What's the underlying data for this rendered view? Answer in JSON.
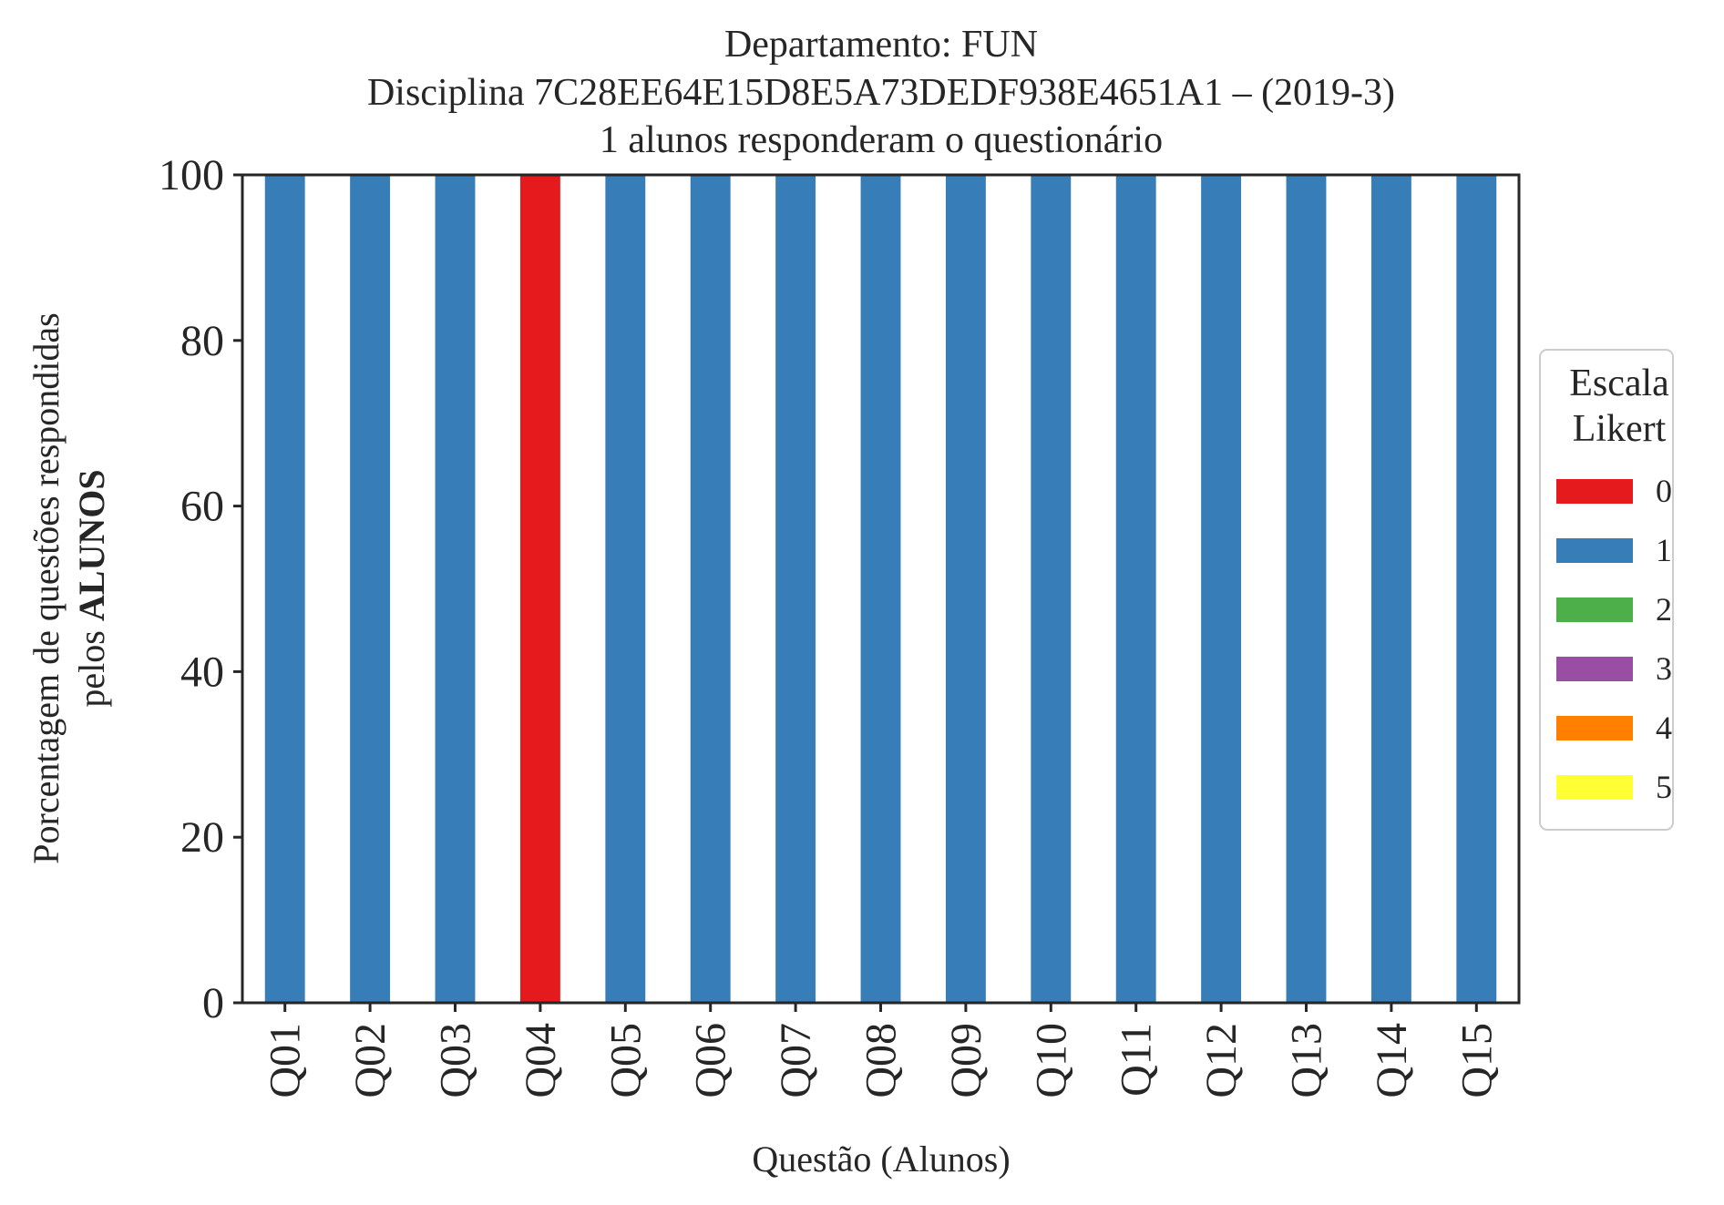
{
  "chart_data": {
    "type": "bar",
    "stacked": true,
    "title_lines": [
      "Departamento: FUN",
      "Disciplina 7C28EE64E15D8E5A73DEDF938E4651A1 – (2019-3)",
      "1 alunos responderam o questionário"
    ],
    "xlabel": "Questão (Alunos)",
    "ylabel_line1": "Porcentagem de questões respondidas",
    "ylabel_line2_prefix": "pelos ",
    "ylabel_line2_bold": "ALUNOS",
    "ylim": [
      0,
      100
    ],
    "yticks": [
      0,
      20,
      40,
      60,
      80,
      100
    ],
    "grid": false,
    "categories": [
      "Q01",
      "Q02",
      "Q03",
      "Q04",
      "Q05",
      "Q06",
      "Q07",
      "Q08",
      "Q09",
      "Q10",
      "Q11",
      "Q12",
      "Q13",
      "Q14",
      "Q15"
    ],
    "series": [
      {
        "name": "0",
        "color": "#e41a1c",
        "values": [
          0,
          0,
          0,
          100,
          0,
          0,
          0,
          0,
          0,
          0,
          0,
          0,
          0,
          0,
          0
        ]
      },
      {
        "name": "1",
        "color": "#377eb8",
        "values": [
          100,
          100,
          100,
          0,
          100,
          100,
          100,
          100,
          100,
          100,
          100,
          100,
          100,
          100,
          100
        ]
      },
      {
        "name": "2",
        "color": "#4daf4a",
        "values": [
          0,
          0,
          0,
          0,
          0,
          0,
          0,
          0,
          0,
          0,
          0,
          0,
          0,
          0,
          0
        ]
      },
      {
        "name": "3",
        "color": "#984ea3",
        "values": [
          0,
          0,
          0,
          0,
          0,
          0,
          0,
          0,
          0,
          0,
          0,
          0,
          0,
          0,
          0
        ]
      },
      {
        "name": "4",
        "color": "#ff7f00",
        "values": [
          0,
          0,
          0,
          0,
          0,
          0,
          0,
          0,
          0,
          0,
          0,
          0,
          0,
          0,
          0
        ]
      },
      {
        "name": "5",
        "color": "#ffff33",
        "values": [
          0,
          0,
          0,
          0,
          0,
          0,
          0,
          0,
          0,
          0,
          0,
          0,
          0,
          0,
          0
        ]
      }
    ],
    "legend": {
      "title_lines": [
        "Escala",
        "Likert"
      ],
      "placement": "right"
    }
  }
}
